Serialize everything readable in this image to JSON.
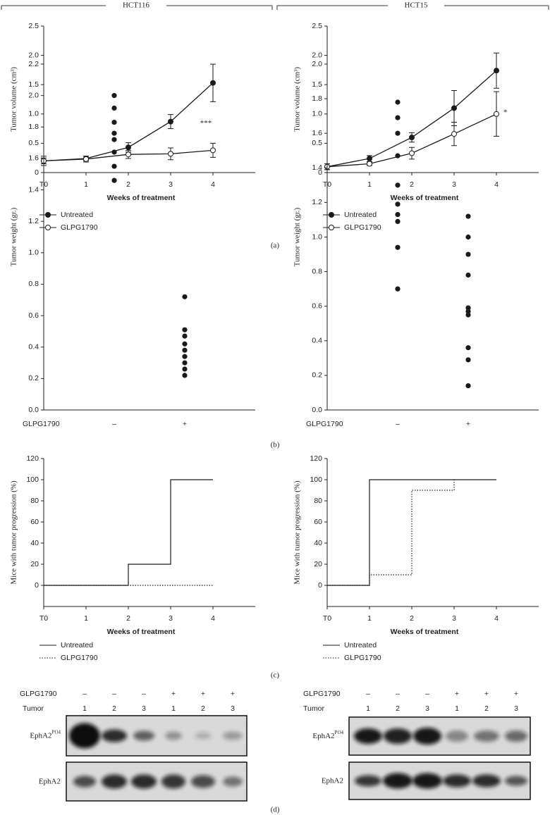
{
  "headers": [
    "HCT116",
    "HCT15"
  ],
  "panel_labels": [
    "(a)",
    "(b)",
    "(c)",
    "(d)"
  ],
  "chart_data": [
    {
      "type": "line",
      "x_label": "Weeks of treatment",
      "y_label": "Tumor volume (cm³)",
      "xlim": [
        0,
        5
      ],
      "xticks": [
        {
          "value": 0,
          "label": "T0"
        },
        1,
        2,
        3,
        4
      ],
      "ylim": [
        0,
        2.5
      ],
      "yticks": [
        0,
        0.5,
        {
          "value": 1,
          "label": "1.0"
        },
        1.5,
        {
          "value": 2,
          "label": "2.0"
        },
        2.5
      ],
      "x": [
        0,
        1,
        2,
        3,
        4
      ],
      "series": [
        {
          "name": "Untreated",
          "color": "#1a1a1a",
          "marker_fill": "#1a1a1a",
          "values": [
            0.2,
            0.24,
            0.43,
            0.87,
            1.53
          ],
          "errors": [
            0.05,
            0.04,
            0.08,
            0.12,
            0.32
          ]
        },
        {
          "name": "GLPG1790",
          "color": "#1a1a1a",
          "marker_fill": "#ffffff",
          "values": [
            0.2,
            0.23,
            0.31,
            0.32,
            0.38
          ],
          "errors": [
            0.08,
            0.05,
            0.07,
            0.1,
            0.12
          ]
        }
      ],
      "annotation": "***"
    },
    {
      "type": "line",
      "x_label": "Weeks of treatment",
      "y_label": "Tumor volume (cm³)",
      "xlim": [
        0,
        5
      ],
      "xticks": [
        {
          "value": 0,
          "label": "T0"
        },
        1,
        2,
        3,
        4
      ],
      "ylim": [
        0,
        2.5
      ],
      "yticks": [
        0,
        0.5,
        {
          "value": 1,
          "label": "1.0"
        },
        1.5,
        {
          "value": 2,
          "label": "2.0"
        },
        2.5
      ],
      "x": [
        0,
        1,
        2,
        3,
        4
      ],
      "series": [
        {
          "name": "Untreated",
          "color": "#1a1a1a",
          "marker_fill": "#1a1a1a",
          "values": [
            0.1,
            0.24,
            0.6,
            1.1,
            1.74
          ],
          "errors": [
            0.05,
            0.05,
            0.08,
            0.3,
            0.3
          ]
        },
        {
          "name": "GLPG1790",
          "color": "#1a1a1a",
          "marker_fill": "#ffffff",
          "values": [
            0.1,
            0.15,
            0.33,
            0.66,
            1.0
          ],
          "errors": [
            0.05,
            0.03,
            0.1,
            0.2,
            0.38
          ]
        }
      ],
      "annotation": "*"
    },
    {
      "type": "strip",
      "x_label": "GLPG1790",
      "y_label": "Tumor weight (gr.)",
      "color": "#1a1a1a",
      "categories": [
        "–",
        "+"
      ],
      "ylim": [
        0,
        2.2
      ],
      "yticks": [
        {
          "value": 0,
          "label": "0.0"
        },
        0.2,
        0.4,
        0.6,
        0.8,
        {
          "value": 1,
          "label": "1.0"
        },
        1.2,
        1.4,
        1.6,
        1.8,
        {
          "value": 2,
          "label": "2.0"
        },
        2.2
      ],
      "values": [
        [
          2.0,
          1.92,
          1.83,
          1.76,
          1.72,
          1.64,
          1.55,
          1.46
        ],
        [
          0.72,
          0.51,
          0.47,
          0.42,
          0.38,
          0.34,
          0.3,
          0.26,
          0.22
        ]
      ]
    },
    {
      "type": "strip",
      "x_label": "GLPG1790",
      "y_label": "Tumor weight (gr.)",
      "color": "#1a1a1a",
      "categories": [
        "–",
        "+"
      ],
      "ylim": [
        0,
        2.0
      ],
      "yticks": [
        {
          "value": 0,
          "label": "0.0"
        },
        0.2,
        0.4,
        0.6,
        0.8,
        {
          "value": 1,
          "label": "1.0"
        },
        1.2,
        1.4,
        1.6,
        1.8,
        {
          "value": 2,
          "label": "2.0"
        }
      ],
      "values": [
        [
          1.78,
          1.69,
          1.6,
          1.47,
          1.3,
          1.19,
          1.13,
          1.09,
          0.94,
          0.7
        ],
        [
          1.12,
          1.0,
          0.9,
          0.78,
          0.59,
          0.57,
          0.55,
          0.36,
          0.29,
          0.14
        ]
      ]
    },
    {
      "type": "step",
      "x_label": "Weeks of treatment",
      "y_label": "Mice with tumor progression (%)",
      "xlim": [
        0,
        5
      ],
      "xticks": [
        {
          "value": 0,
          "label": "T0"
        },
        1,
        2,
        3,
        4
      ],
      "ylim": [
        -20,
        120
      ],
      "yticks": [
        0,
        20,
        40,
        60,
        80,
        100,
        120
      ],
      "series": [
        {
          "name": "Untreated",
          "color": "#1a1a1a",
          "line_style": "solid",
          "x": [
            0,
            1,
            2,
            3,
            4
          ],
          "values": [
            0,
            0,
            20,
            100,
            100
          ]
        },
        {
          "name": "GLPG1790",
          "color": "#1a1a1a",
          "line_style": "dotted",
          "x": [
            0,
            1,
            2,
            3,
            4
          ],
          "values": [
            0,
            0,
            0,
            0,
            0
          ]
        }
      ]
    },
    {
      "type": "step",
      "x_label": "Weeks of treatment",
      "y_label": "Mice with tumor progression (%)",
      "xlim": [
        0,
        5
      ],
      "xticks": [
        {
          "value": 0,
          "label": "T0"
        },
        1,
        2,
        3,
        4
      ],
      "ylim": [
        -20,
        120
      ],
      "yticks": [
        0,
        20,
        40,
        60,
        80,
        100,
        120
      ],
      "series": [
        {
          "name": "Untreated",
          "color": "#1a1a1a",
          "line_style": "solid",
          "x": [
            0,
            1,
            2,
            3,
            4
          ],
          "values": [
            0,
            100,
            100,
            100,
            100
          ]
        },
        {
          "name": "GLPG1790",
          "color": "#1a1a1a",
          "line_style": "dotted",
          "x": [
            0,
            1,
            2,
            3
          ],
          "values": [
            0,
            10,
            90,
            100
          ]
        }
      ]
    }
  ],
  "blots": [
    {
      "treatment_label": "GLPG1790",
      "treatment": [
        "–",
        "–",
        "–",
        "+",
        "+",
        "+"
      ],
      "tumor_label": "Tumor",
      "tumor": [
        "1",
        "2",
        "3",
        "1",
        "2",
        "3"
      ],
      "bands": [
        {
          "name": "EphA2",
          "sup": "PO4"
        },
        {
          "name": "EphA2"
        }
      ]
    },
    {
      "treatment_label": "GLPG1790",
      "treatment": [
        "–",
        "–",
        "–",
        "+",
        "+",
        "+"
      ],
      "tumor_label": "Tumor",
      "tumor": [
        "1",
        "2",
        "3",
        "1",
        "2",
        "3"
      ],
      "bands": [
        {
          "name": "EphA2",
          "sup": "PO4"
        },
        {
          "name": "EphA2"
        }
      ]
    }
  ]
}
